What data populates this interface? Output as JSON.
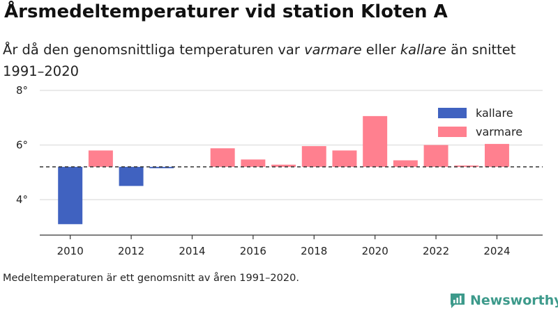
{
  "title": "Årsmedeltemperaturer vid station Kloten A",
  "subtitle": {
    "part1": "År då den genomsnittliga temperaturen var ",
    "warm_word": "varmare",
    "part2": " eller ",
    "cold_word": "kallare",
    "part3": " än snittet 1991–2020"
  },
  "note": "Medeltemperaturen är ett genomsnitt av åren 1991–2020.",
  "brand": "Newsworthy",
  "colors": {
    "colder": "#4062c0",
    "warmer": "#ff808f",
    "baseline": "#333333",
    "grid": "#dddddd"
  },
  "chart_data": {
    "type": "bar",
    "baseline": 5.2,
    "x": [
      2010,
      2011,
      2012,
      2013,
      2014,
      2015,
      2016,
      2017,
      2018,
      2019,
      2020,
      2021,
      2022,
      2023,
      2024
    ],
    "values": [
      3.1,
      5.8,
      4.5,
      5.15,
      5.2,
      5.88,
      5.47,
      5.28,
      5.96,
      5.8,
      7.06,
      5.44,
      6.0,
      5.25,
      6.04
    ],
    "x_ticks": [
      "2010",
      "2012",
      "2014",
      "2016",
      "2018",
      "2020",
      "2022",
      "2024"
    ],
    "y_ticks": [
      "4°",
      "6°",
      "8°"
    ],
    "y_tick_values": [
      4,
      6,
      8
    ],
    "ylim": [
      2.7,
      8.0
    ],
    "xlim": [
      2009,
      2025.5
    ],
    "grid": true,
    "legend": {
      "position": "top-right",
      "items": [
        {
          "label": "kallare",
          "color": "#4062c0"
        },
        {
          "label": "varmare",
          "color": "#ff808f"
        }
      ]
    }
  }
}
